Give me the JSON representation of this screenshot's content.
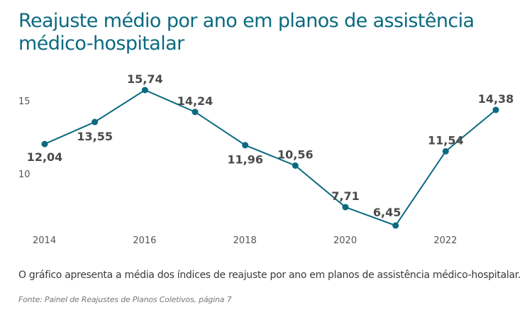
{
  "title": "Reajuste médio por ano em planos de assistência médico-hospitalar",
  "caption": "O gráfico apresenta a média dos índices de reajuste por ano em planos de assistência médico-hospitalar.",
  "source": "Fonte: Painel de Reajustes de Planos Coletivos, página 7",
  "colors": {
    "line": "#0b6a80",
    "title": "#0b6a80",
    "label": "#4a4a4a",
    "tick": "#555555"
  },
  "chart_data": {
    "type": "line",
    "title": "Reajuste médio por ano em planos de assistência médico-hospitalar",
    "xlabel": "",
    "ylabel": "",
    "x": [
      2014,
      2015,
      2016,
      2017,
      2018,
      2019,
      2020,
      2021,
      2022,
      2023
    ],
    "values": [
      12.04,
      13.55,
      15.74,
      14.24,
      11.96,
      10.56,
      7.71,
      6.45,
      11.54,
      14.38
    ],
    "data_labels": [
      "12,04",
      "13,55",
      "15,74",
      "14,24",
      "11,96",
      "10,56",
      "7,71",
      "6,45",
      "11,54",
      "14,38"
    ],
    "label_position": [
      "below",
      "below",
      "above",
      "above",
      "below",
      "above",
      "above",
      "above",
      "above",
      "above"
    ],
    "x_ticks": [
      2014,
      2016,
      2018,
      2020,
      2022
    ],
    "x_tick_labels": [
      "2014",
      "2016",
      "2018",
      "2020",
      "2022"
    ],
    "y_ticks": [
      10,
      15
    ],
    "y_tick_labels": [
      "10",
      "15"
    ],
    "xlim": [
      2014,
      2023
    ],
    "ylim": [
      6.45,
      15.74
    ],
    "grid": false,
    "legend": "none"
  }
}
